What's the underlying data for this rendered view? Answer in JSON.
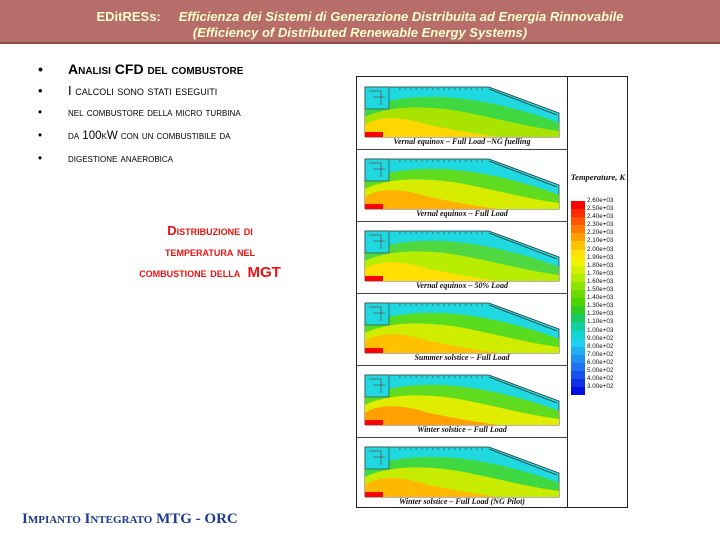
{
  "header": {
    "brand": "EDitRESs:",
    "title_it": "Efficienza dei Sistemi di Generazione Distribuita ad Energia Rinnovabile",
    "title_en": "(Efficiency of Distributed Renewable Energy Systems)"
  },
  "bullets": [
    "Analisi CFD del combustore",
    "I calcoli sono stati eseguiti",
    "nel combustore della micro turbina",
    "da 100kW con un combustibile da",
    "digestione anaerobica"
  ],
  "caption": {
    "line1": "Distribuzione di",
    "line2": "temperatura nel",
    "line3_text": "combustione della",
    "line3_mgt": "MGT"
  },
  "figure": {
    "panels": [
      {
        "caption": "Vernal equinox – Full Load –NG fuelling",
        "profile": "ng"
      },
      {
        "caption": "Vernal equinox – Full Load",
        "profile": "full"
      },
      {
        "caption": "Vernal equinox – 50% Load",
        "profile": "half"
      },
      {
        "caption": "Summer solstice – Full Load",
        "profile": "summer"
      },
      {
        "caption": "Winter solstice – Full Load",
        "profile": "winter"
      },
      {
        "caption": "Winter solstice – Full Load (NG Pilot)",
        "profile": "pilot"
      }
    ],
    "legend_title": "Temperature, K",
    "legend_labels": [
      "2.60e+03",
      "2.50e+03",
      "2.40e+03",
      "2.30e+03",
      "2.20e+03",
      "2.10e+03",
      "2.00e+03",
      "1.90e+03",
      "1.80e+03",
      "1.70e+03",
      "1.60e+03",
      "1.50e+03",
      "1.40e+03",
      "1.30e+03",
      "1.20e+03",
      "1.10e+03",
      "1.00e+03",
      "9.00e+02",
      "8.00e+02",
      "7.00e+02",
      "6.00e+02",
      "5.00e+02",
      "4.00e+02",
      "3.00e+02"
    ],
    "legend_colors": [
      "#ff0000",
      "#ff2a00",
      "#ff5500",
      "#ff7a00",
      "#ff9f00",
      "#ffc400",
      "#ffe400",
      "#f0f000",
      "#d2f000",
      "#b0ec00",
      "#8ee400",
      "#6cdc00",
      "#4cd400",
      "#2ccc20",
      "#18cc60",
      "#10d0a0",
      "#10d8d0",
      "#20d0f0",
      "#20b0f0",
      "#2090f0",
      "#2070f0",
      "#1850f0",
      "#1030e8",
      "#0010e0"
    ]
  },
  "footer": "Impianto Integrato MTG - ORC"
}
